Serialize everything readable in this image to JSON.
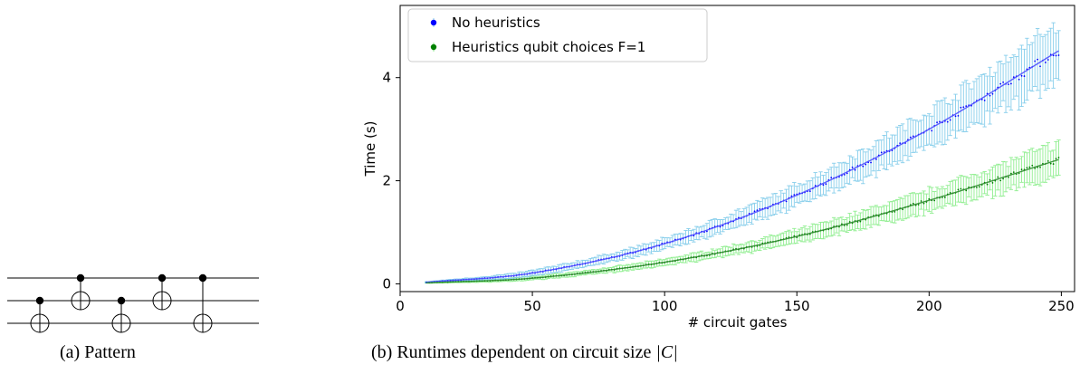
{
  "captions": {
    "a": "(a) Pattern",
    "b_prefix": "(b) Runtimes dependent on circuit size ",
    "b_math": "|C|"
  },
  "circuit": {
    "wires": 3,
    "gates": [
      {
        "control": 1,
        "target": 2
      },
      {
        "control": 0,
        "target": 1
      },
      {
        "control": 1,
        "target": 2
      },
      {
        "control": 0,
        "target": 1
      },
      {
        "control": 0,
        "target": 2
      }
    ]
  },
  "chart_data": {
    "type": "scatter",
    "title": "",
    "xlabel": "# circuit gates",
    "ylabel": "Time (s)",
    "xlim": [
      0,
      255
    ],
    "ylim": [
      -0.15,
      5.4
    ],
    "xticks": [
      0,
      50,
      100,
      150,
      200,
      250
    ],
    "yticks": [
      0,
      2,
      4
    ],
    "grid": false,
    "legend": "top-left",
    "x_range": [
      10,
      249
    ],
    "series": [
      {
        "name": "No heuristics",
        "marker_color": "#0000ff",
        "errorbar_color": "#87ceeb",
        "fit_color": "#4f4fff",
        "mean_at": {
          "x": [
            10,
            50,
            100,
            150,
            200,
            249
          ],
          "y": [
            0.03,
            0.21,
            0.78,
            1.72,
            3.0,
            4.52
          ]
        },
        "error_at": {
          "x": [
            10,
            100,
            150,
            200,
            249
          ],
          "y": [
            0.01,
            0.1,
            0.2,
            0.35,
            0.55
          ]
        }
      },
      {
        "name": "Heuristics qubit choices F=1",
        "marker_color": "#008000",
        "errorbar_color": "#90ee90",
        "fit_color": "#2e8b2e",
        "mean_at": {
          "x": [
            10,
            50,
            100,
            150,
            200,
            249
          ],
          "y": [
            0.02,
            0.11,
            0.42,
            0.92,
            1.62,
            2.41
          ]
        },
        "error_at": {
          "x": [
            10,
            100,
            150,
            200,
            249
          ],
          "y": [
            0.01,
            0.06,
            0.12,
            0.2,
            0.32
          ]
        }
      }
    ]
  }
}
